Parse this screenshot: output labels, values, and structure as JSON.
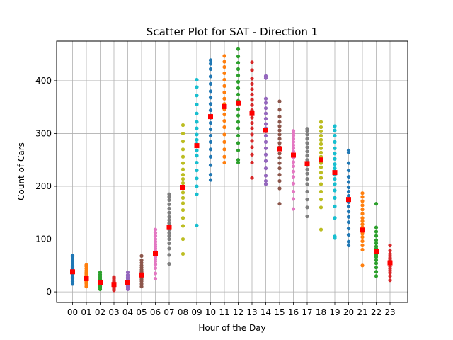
{
  "chart_data": {
    "type": "scatter",
    "title": "Scatter Plot for SAT - Direction 1",
    "xlabel": "Hour of the Day",
    "ylabel": "Count of Cars",
    "ylim": [
      -20,
      475
    ],
    "yticks": [
      0,
      100,
      200,
      300,
      400
    ],
    "grid": true,
    "categories": [
      "00",
      "01",
      "02",
      "03",
      "04",
      "05",
      "06",
      "07",
      "08",
      "09",
      "10",
      "11",
      "12",
      "13",
      "14",
      "15",
      "16",
      "17",
      "18",
      "19",
      "20",
      "21",
      "22",
      "23"
    ],
    "series_colors": [
      "#1f77b4",
      "#ff7f0e",
      "#2ca02c",
      "#d62728",
      "#9467bd",
      "#8c564b",
      "#e377c2",
      "#7f7f7f",
      "#bcbd22",
      "#17becf"
    ],
    "mean_color": "#ff0000",
    "series": [
      {
        "hour": "00",
        "min": 15,
        "max": 69,
        "mean": 38,
        "points": [
          15,
          20,
          25,
          28,
          30,
          33,
          35,
          36,
          38,
          40,
          42,
          44,
          46,
          48,
          50,
          54,
          58,
          62,
          66,
          69
        ]
      },
      {
        "hour": "01",
        "min": 10,
        "max": 51,
        "mean": 25,
        "points": [
          10,
          13,
          16,
          18,
          20,
          22,
          24,
          25,
          26,
          28,
          30,
          32,
          34,
          37,
          40,
          44,
          48,
          51
        ]
      },
      {
        "hour": "02",
        "min": 5,
        "max": 37,
        "mean": 18,
        "points": [
          5,
          8,
          10,
          12,
          14,
          16,
          17,
          18,
          19,
          20,
          22,
          24,
          27,
          30,
          33,
          37
        ]
      },
      {
        "hour": "03",
        "min": 3,
        "max": 28,
        "mean": 14,
        "points": [
          3,
          5,
          7,
          9,
          10,
          12,
          13,
          14,
          15,
          16,
          18,
          20,
          22,
          25,
          28
        ]
      },
      {
        "hour": "04",
        "min": 5,
        "max": 37,
        "mean": 17,
        "points": [
          5,
          8,
          10,
          12,
          14,
          15,
          16,
          17,
          18,
          20,
          22,
          25,
          28,
          32,
          37
        ]
      },
      {
        "hour": "05",
        "min": 10,
        "max": 68,
        "mean": 32,
        "points": [
          10,
          15,
          20,
          24,
          27,
          30,
          32,
          33,
          35,
          38,
          42,
          46,
          50,
          55,
          60,
          68
        ]
      },
      {
        "hour": "06",
        "min": 25,
        "max": 118,
        "mean": 72,
        "points": [
          25,
          35,
          45,
          52,
          58,
          62,
          66,
          70,
          72,
          74,
          78,
          82,
          86,
          90,
          95,
          100,
          106,
          112,
          118
        ]
      },
      {
        "hour": "07",
        "min": 53,
        "max": 185,
        "mean": 122,
        "points": [
          53,
          70,
          82,
          92,
          100,
          106,
          112,
          118,
          122,
          126,
          130,
          136,
          142,
          150,
          158,
          166,
          174,
          180,
          185
        ]
      },
      {
        "hour": "08",
        "min": 72,
        "max": 316,
        "mean": 198,
        "points": [
          72,
          100,
          125,
          140,
          155,
          168,
          178,
          188,
          196,
          200,
          206,
          214,
          222,
          232,
          244,
          256,
          270,
          285,
          300,
          316
        ]
      },
      {
        "hour": "09",
        "min": 126,
        "max": 402,
        "mean": 277,
        "points": [
          126,
          185,
          200,
          215,
          230,
          245,
          258,
          268,
          276,
          280,
          288,
          298,
          310,
          322,
          338,
          355,
          372,
          388,
          402
        ]
      },
      {
        "hour": "10",
        "min": 212,
        "max": 439,
        "mean": 332,
        "points": [
          212,
          222,
          240,
          256,
          270,
          284,
          296,
          308,
          320,
          330,
          334,
          344,
          356,
          368,
          380,
          394,
          408,
          422,
          432,
          439
        ]
      },
      {
        "hour": "11",
        "min": 245,
        "max": 447,
        "mean": 351,
        "points": [
          245,
          256,
          270,
          284,
          298,
          312,
          324,
          336,
          346,
          350,
          356,
          366,
          378,
          390,
          402,
          414,
          426,
          436,
          447
        ]
      },
      {
        "hour": "12",
        "min": 245,
        "max": 460,
        "mean": 358,
        "points": [
          245,
          250,
          268,
          282,
          296,
          310,
          322,
          334,
          346,
          356,
          362,
          374,
          386,
          398,
          410,
          422,
          434,
          446,
          460
        ]
      },
      {
        "hour": "13",
        "min": 216,
        "max": 435,
        "mean": 338,
        "points": [
          216,
          245,
          260,
          274,
          286,
          298,
          310,
          320,
          330,
          338,
          344,
          354,
          364,
          374,
          384,
          394,
          404,
          420,
          435
        ]
      },
      {
        "hour": "14",
        "min": 204,
        "max": 409,
        "mean": 306,
        "points": [
          204,
          210,
          220,
          234,
          248,
          260,
          272,
          284,
          296,
          304,
          310,
          318,
          328,
          338,
          348,
          358,
          366,
          405,
          409
        ]
      },
      {
        "hour": "15",
        "min": 167,
        "max": 361,
        "mean": 271,
        "points": [
          167,
          196,
          210,
          222,
          234,
          244,
          254,
          262,
          270,
          274,
          282,
          290,
          298,
          306,
          314,
          322,
          332,
          345,
          361
        ]
      },
      {
        "hour": "16",
        "min": 157,
        "max": 305,
        "mean": 259,
        "points": [
          157,
          176,
          190,
          205,
          218,
          228,
          238,
          246,
          254,
          260,
          266,
          272,
          278,
          284,
          290,
          296,
          300,
          305
        ]
      },
      {
        "hour": "17",
        "min": 143,
        "max": 309,
        "mean": 243,
        "points": [
          143,
          160,
          175,
          190,
          204,
          214,
          224,
          232,
          240,
          244,
          250,
          258,
          266,
          274,
          282,
          290,
          298,
          304,
          309
        ]
      },
      {
        "hour": "18",
        "min": 118,
        "max": 322,
        "mean": 250,
        "points": [
          118,
          160,
          175,
          190,
          204,
          216,
          226,
          236,
          244,
          250,
          256,
          264,
          272,
          280,
          288,
          296,
          304,
          312,
          322
        ]
      },
      {
        "hour": "19",
        "min": 102,
        "max": 314,
        "mean": 226,
        "points": [
          102,
          105,
          140,
          162,
          178,
          192,
          204,
          214,
          222,
          228,
          234,
          242,
          252,
          262,
          272,
          284,
          296,
          306,
          314
        ]
      },
      {
        "hour": "20",
        "min": 88,
        "max": 268,
        "mean": 175,
        "points": [
          88,
          95,
          108,
          120,
          132,
          142,
          152,
          162,
          170,
          176,
          182,
          190,
          198,
          208,
          218,
          230,
          244,
          264,
          268
        ]
      },
      {
        "hour": "21",
        "min": 50,
        "max": 187,
        "mean": 117,
        "points": [
          50,
          80,
          88,
          96,
          104,
          110,
          114,
          118,
          122,
          128,
          134,
          140,
          148,
          156,
          164,
          172,
          180,
          187
        ]
      },
      {
        "hour": "22",
        "min": 30,
        "max": 167,
        "mean": 77,
        "points": [
          30,
          38,
          46,
          54,
          60,
          66,
          70,
          74,
          78,
          82,
          86,
          92,
          98,
          106,
          114,
          122,
          167
        ]
      },
      {
        "hour": "23",
        "min": 22,
        "max": 88,
        "mean": 55,
        "points": [
          22,
          30,
          36,
          40,
          44,
          48,
          52,
          54,
          56,
          58,
          60,
          64,
          68,
          72,
          78,
          88
        ]
      }
    ]
  }
}
